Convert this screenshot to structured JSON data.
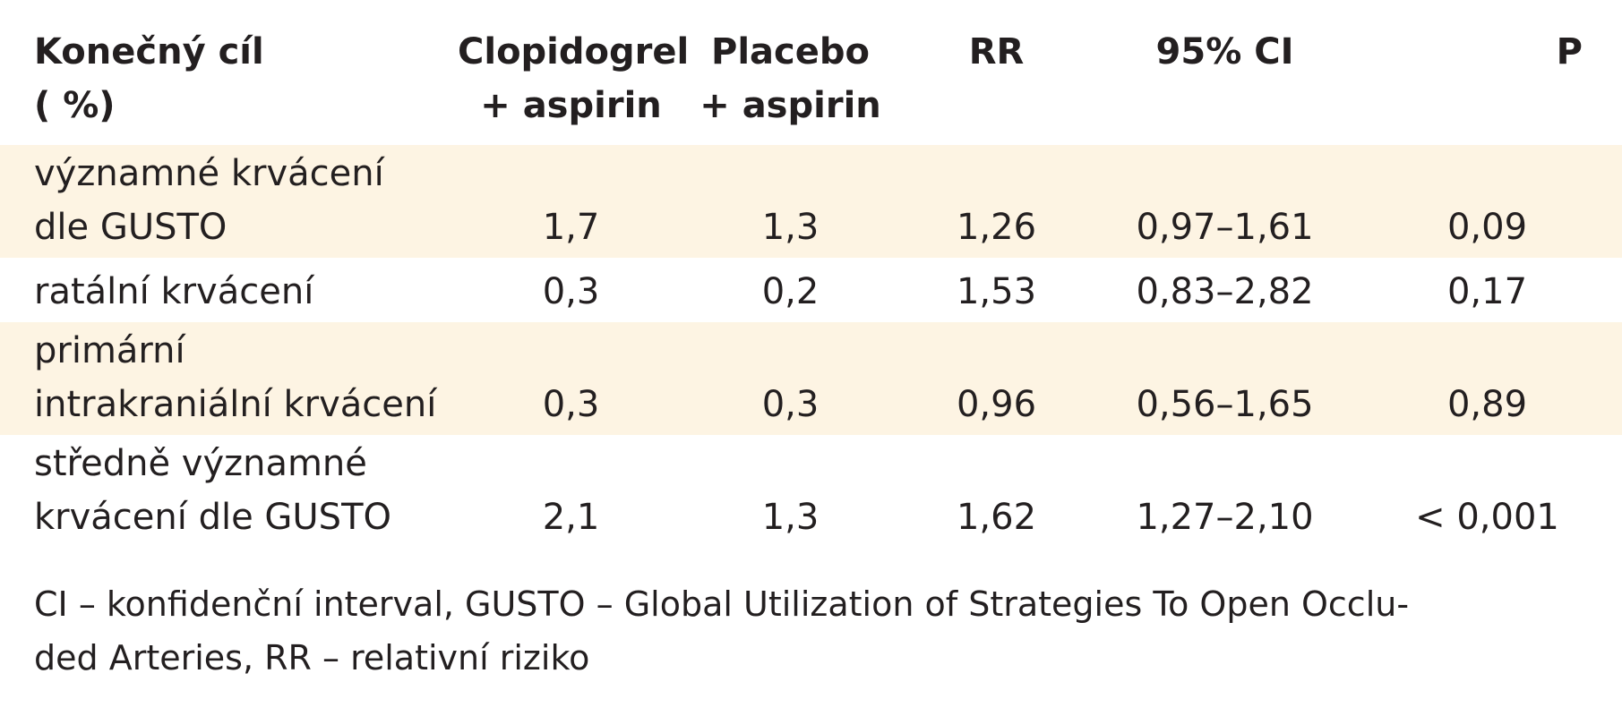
{
  "table": {
    "headers": [
      {
        "lines": [
          "Konečný cíl",
          "( %)"
        ]
      },
      {
        "lines": [
          "Clopidogrel",
          "+ aspirin"
        ]
      },
      {
        "lines": [
          "Placebo",
          "+ aspirin"
        ]
      },
      {
        "lines": [
          "RR"
        ]
      },
      {
        "lines": [
          "95% CI"
        ]
      },
      {
        "lines": [
          "P"
        ]
      }
    ],
    "rows": [
      {
        "label": [
          "významné krvácení",
          "dle GUSTO"
        ],
        "clopidogrel": "1,7",
        "placebo": "1,3",
        "rr": "1,26",
        "ci": "0,97–1,61",
        "p": "0,09",
        "shaded": true
      },
      {
        "label": [
          "ratální krvácení"
        ],
        "clopidogrel": "0,3",
        "placebo": "0,2",
        "rr": "1,53",
        "ci": "0,83–2,82",
        "p": "0,17",
        "shaded": false
      },
      {
        "label": [
          "primární",
          "intrakraniální krvácení"
        ],
        "clopidogrel": "0,3",
        "placebo": "0,3",
        "rr": "0,96",
        "ci": "0,56–1,65",
        "p": "0,89",
        "shaded": true
      },
      {
        "label": [
          "středně významné",
          "krvácení dle GUSTO"
        ],
        "clopidogrel": "2,1",
        "placebo": "1,3",
        "rr": "1,62",
        "ci": "1,27–2,10",
        "p": "< 0,001",
        "shaded": false
      }
    ]
  },
  "footnote": {
    "lines": [
      "CI – konfidenční interval, GUSTO – Global Utilization of Strategies To Open Occlu-",
      "ded Arteries, RR – relativní riziko"
    ]
  },
  "colors": {
    "text": "#231f20",
    "row_shade": "#fdf4e3",
    "background": "#ffffff"
  }
}
